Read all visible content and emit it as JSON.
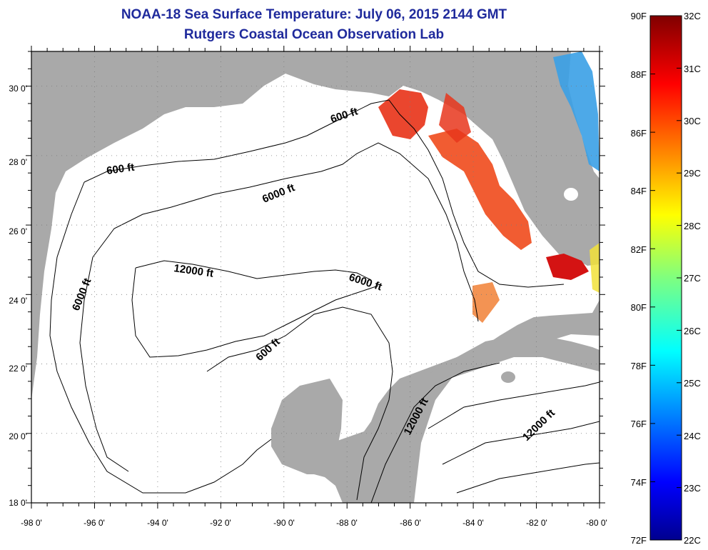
{
  "title": {
    "line1": "NOAA-18 Sea Surface Temperature:  July 06, 2015 2144 GMT",
    "line2": "Rutgers Coastal Ocean Observation Lab"
  },
  "colors": {
    "land": "#a9a9a9",
    "ocean": "#ffffff",
    "title": "#1f2a9c",
    "grid": "#7a7a7a"
  },
  "map": {
    "lon_range": [
      -98,
      -80
    ],
    "lat_range": [
      18,
      31
    ],
    "lon_labels": [
      "-98 0'",
      "-96 0'",
      "-94 0'",
      "-92 0'",
      "-90 0'",
      "-88 0'",
      "-86 0'",
      "-84 0'",
      "-82 0'",
      "-80 0'"
    ],
    "lat_labels": [
      "18 0'",
      "20 0'",
      "22 0'",
      "24 0'",
      "26 0'",
      "28 0'",
      "30 0'"
    ],
    "contour_labels": [
      {
        "text": "600 ft"
      },
      {
        "text": "600 ft"
      },
      {
        "text": "6000 ft"
      },
      {
        "text": "6000 ft"
      },
      {
        "text": "6000 ft"
      },
      {
        "text": "12000 ft"
      },
      {
        "text": "600 ft"
      },
      {
        "text": "12000 ft"
      },
      {
        "text": "12000 ft"
      }
    ],
    "sst_patches": [
      {
        "region": "Florida Big Bend shelf",
        "color": "#e8361c"
      },
      {
        "region": "West Florida shelf",
        "color": "#f04a1c"
      },
      {
        "region": "Florida Bay",
        "color": "#d41313"
      },
      {
        "region": "Florida Atlantic coast",
        "color": "#3aa0e6"
      }
    ]
  },
  "colorbar": {
    "range_c": [
      22,
      32
    ],
    "range_f": [
      72,
      90
    ],
    "celsius_labels": [
      "32C",
      "31C",
      "30C",
      "29C",
      "28C",
      "27C",
      "26C",
      "25C",
      "24C",
      "23C",
      "22C"
    ],
    "fahrenheit_labels": [
      "90F",
      "88F",
      "86F",
      "84F",
      "82F",
      "80F",
      "78F",
      "76F",
      "74F",
      "72F"
    ]
  }
}
